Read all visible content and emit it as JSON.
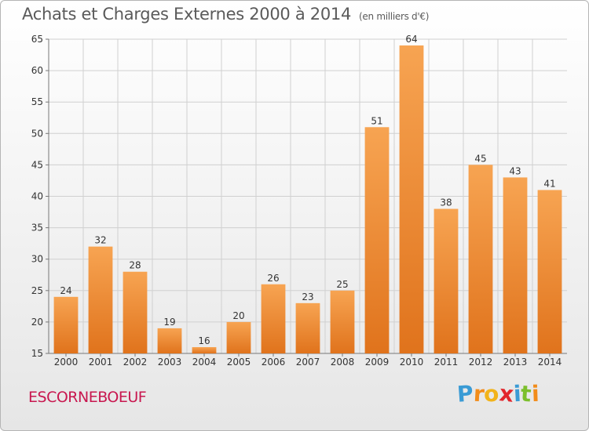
{
  "chart_data": {
    "type": "bar",
    "title": "Achats et Charges Externes 2000 à 2014",
    "subtitle": "(en milliers d'€)",
    "categories": [
      "2000",
      "2001",
      "2002",
      "2003",
      "2004",
      "2005",
      "2006",
      "2007",
      "2008",
      "2009",
      "2010",
      "2011",
      "2012",
      "2013",
      "2014"
    ],
    "values": [
      24,
      32,
      28,
      19,
      16,
      20,
      26,
      23,
      25,
      51,
      64,
      38,
      45,
      43,
      41
    ],
    "ylim": [
      15,
      65
    ],
    "yticks": [
      15,
      20,
      25,
      30,
      35,
      40,
      45,
      50,
      55,
      60,
      65
    ],
    "grid": true,
    "bar_color": "#f0892a"
  },
  "footer": {
    "place": "ESCORNEBOEUF",
    "logo_letters": [
      "P",
      "r",
      "o",
      "x",
      "i",
      "t",
      "i"
    ],
    "logo_colors": [
      "#3a9bd5",
      "#f28c1a",
      "#f2b31a",
      "#e2262c",
      "#3a9bd5",
      "#7cbf2c",
      "#f28c1a"
    ]
  }
}
